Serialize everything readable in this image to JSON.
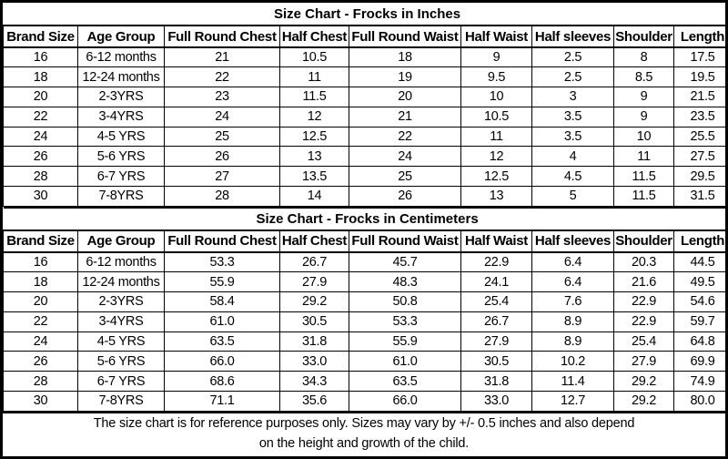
{
  "tables": [
    {
      "title": "Size Chart - Frocks in Inches",
      "headers": [
        "Brand Size",
        "Age Group",
        "Full Round Chest",
        "Half Chest",
        "Full Round Waist",
        "Half Waist",
        "Half sleeves",
        "Shoulder",
        "Length"
      ],
      "rows": [
        [
          "16",
          "6-12 months",
          "21",
          "10.5",
          "18",
          "9",
          "2.5",
          "8",
          "17.5"
        ],
        [
          "18",
          "12-24 months",
          "22",
          "11",
          "19",
          "9.5",
          "2.5",
          "8.5",
          "19.5"
        ],
        [
          "20",
          "2-3YRS",
          "23",
          "11.5",
          "20",
          "10",
          "3",
          "9",
          "21.5"
        ],
        [
          "22",
          "3-4YRS",
          "24",
          "12",
          "21",
          "10.5",
          "3.5",
          "9",
          "23.5"
        ],
        [
          "24",
          "4-5 YRS",
          "25",
          "12.5",
          "22",
          "11",
          "3.5",
          "10",
          "25.5"
        ],
        [
          "26",
          "5-6 YRS",
          "26",
          "13",
          "24",
          "12",
          "4",
          "11",
          "27.5"
        ],
        [
          "28",
          "6-7 YRS",
          "27",
          "13.5",
          "25",
          "12.5",
          "4.5",
          "11.5",
          "29.5"
        ],
        [
          "30",
          "7-8YRS",
          "28",
          "14",
          "26",
          "13",
          "5",
          "11.5",
          "31.5"
        ]
      ]
    },
    {
      "title": "Size Chart - Frocks in Centimeters",
      "headers": [
        "Brand Size",
        "Age Group",
        "Full Round Chest",
        "Half Chest",
        "Full Round Waist",
        "Half Waist",
        "Half sleeves",
        "Shoulder",
        "Length"
      ],
      "rows": [
        [
          "16",
          "6-12 months",
          "53.3",
          "26.7",
          "45.7",
          "22.9",
          "6.4",
          "20.3",
          "44.5"
        ],
        [
          "18",
          "12-24 months",
          "55.9",
          "27.9",
          "48.3",
          "24.1",
          "6.4",
          "21.6",
          "49.5"
        ],
        [
          "20",
          "2-3YRS",
          "58.4",
          "29.2",
          "50.8",
          "25.4",
          "7.6",
          "22.9",
          "54.6"
        ],
        [
          "22",
          "3-4YRS",
          "61.0",
          "30.5",
          "53.3",
          "26.7",
          "8.9",
          "22.9",
          "59.7"
        ],
        [
          "24",
          "4-5 YRS",
          "63.5",
          "31.8",
          "55.9",
          "27.9",
          "8.9",
          "25.4",
          "64.8"
        ],
        [
          "26",
          "5-6 YRS",
          "66.0",
          "33.0",
          "61.0",
          "30.5",
          "10.2",
          "27.9",
          "69.9"
        ],
        [
          "28",
          "6-7 YRS",
          "68.6",
          "34.3",
          "63.5",
          "31.8",
          "11.4",
          "29.2",
          "74.9"
        ],
        [
          "30",
          "7-8YRS",
          "71.1",
          "35.6",
          "66.0",
          "33.0",
          "12.7",
          "29.2",
          "80.0"
        ]
      ]
    }
  ],
  "footer": {
    "line1": "The size chart is for reference purposes only. Sizes may vary by +/- 0.5 inches and also depend",
    "line2": "on the height and growth of the child."
  },
  "colors": {
    "border": "#000000",
    "background": "#ffffff",
    "text": "#000000"
  }
}
